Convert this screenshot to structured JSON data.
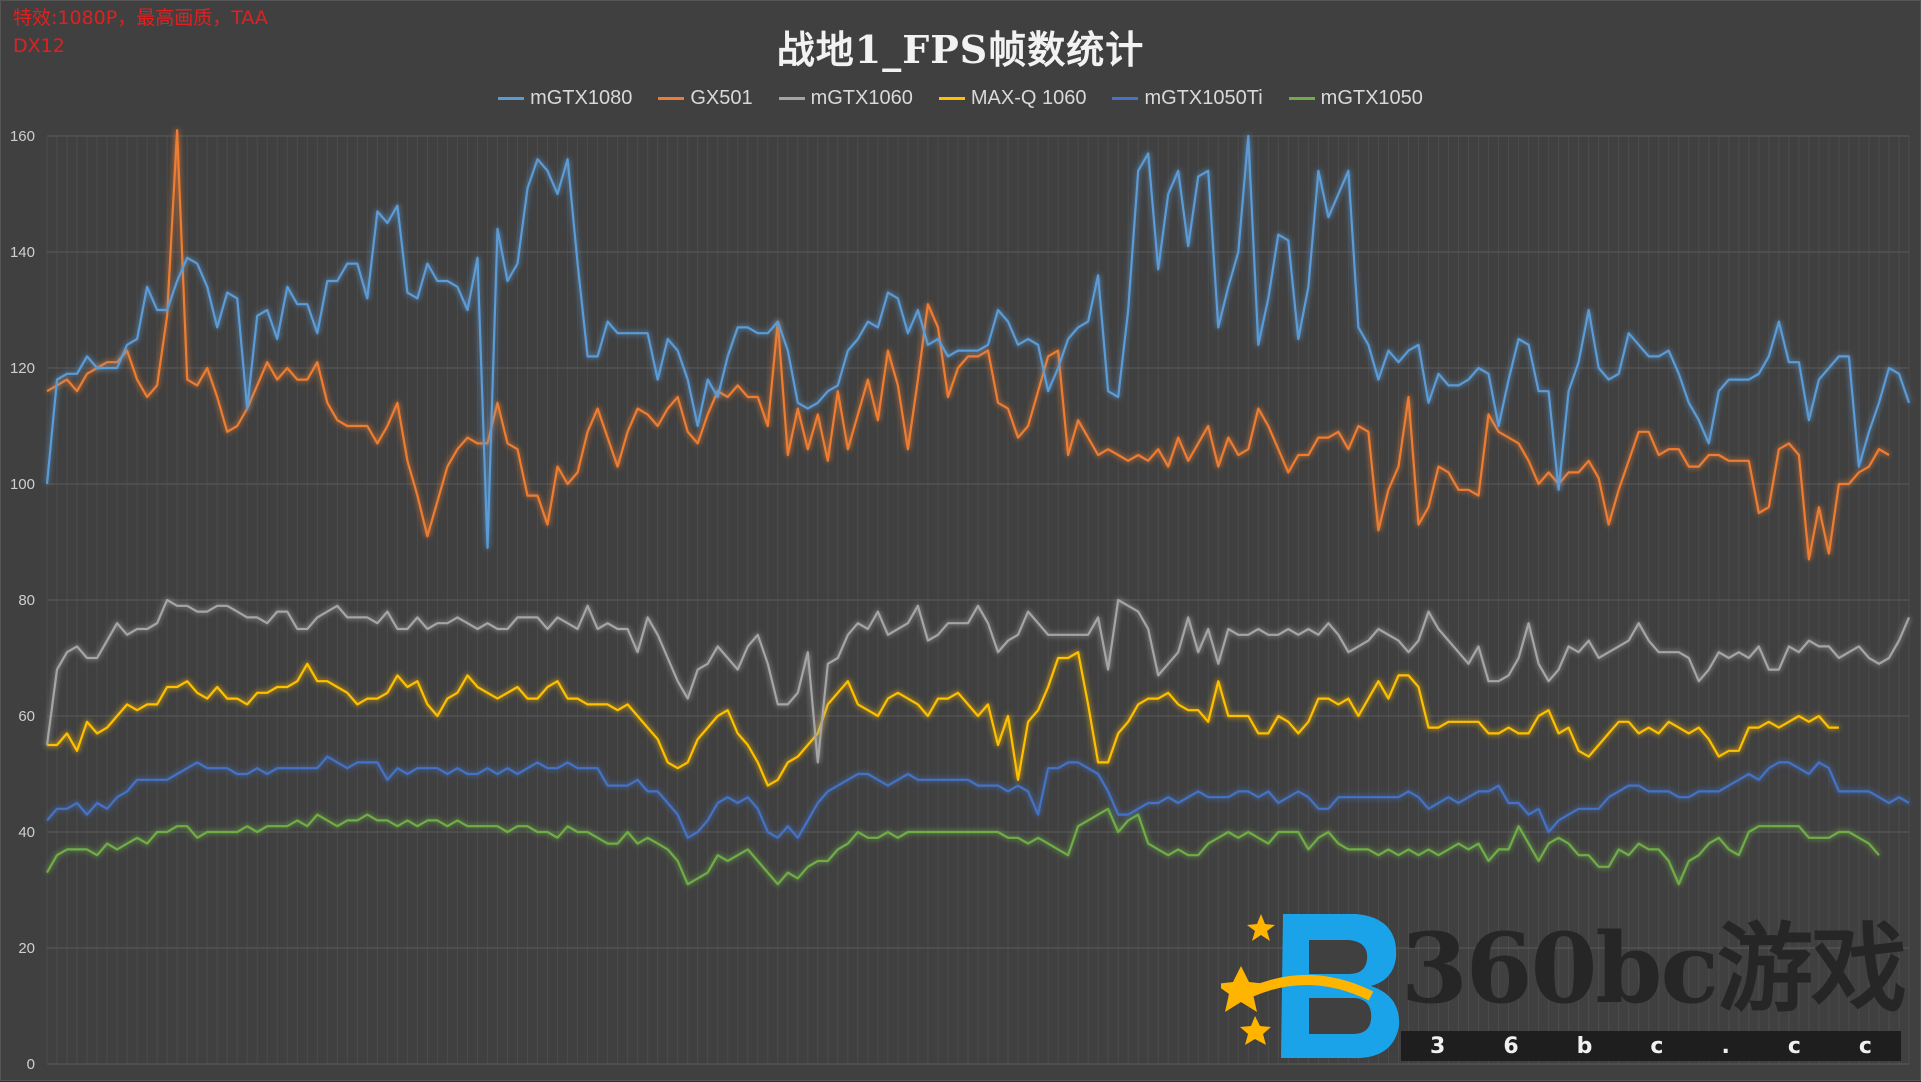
{
  "notes": {
    "line1": "特效:1080P，最高画质，TAA",
    "line2": "DX12"
  },
  "watermark": {
    "text": "360bc游戏",
    "url": "3 6 b c . c c"
  },
  "chart_data": {
    "type": "line",
    "title": "战地1_FPS帧数统计",
    "xlabel": "",
    "ylabel": "",
    "ylim": [
      0,
      160
    ],
    "yticks": [
      0,
      20,
      40,
      60,
      80,
      100,
      120,
      140,
      160
    ],
    "grid": true,
    "legend_position": "top",
    "series": [
      {
        "name": "mGTX1080",
        "color": "#5b9bd5",
        "values": [
          100,
          118,
          119,
          119,
          122,
          120,
          120,
          120,
          124,
          125,
          134,
          130,
          130,
          135,
          139,
          138,
          134,
          127,
          133,
          132,
          113,
          129,
          130,
          125,
          134,
          131,
          131,
          126,
          135,
          135,
          138,
          138,
          132,
          147,
          145,
          148,
          133,
          132,
          138,
          135,
          135,
          134,
          130,
          139,
          89,
          144,
          135,
          138,
          151,
          156,
          154,
          150,
          156,
          138,
          122,
          122,
          128,
          126,
          126,
          126,
          126,
          118,
          125,
          123,
          118,
          110,
          118,
          115,
          122,
          127,
          127,
          126,
          126,
          128,
          123,
          114,
          113,
          114,
          116,
          117,
          123,
          125,
          128,
          127,
          133,
          132,
          126,
          130,
          124,
          125,
          122,
          123,
          123,
          123,
          124,
          130,
          128,
          124,
          125,
          124,
          116,
          120,
          125,
          127,
          128,
          136,
          116,
          115,
          130,
          154,
          157,
          137,
          150,
          154,
          141,
          153,
          154,
          127,
          134,
          140,
          160,
          124,
          132,
          143,
          142,
          125,
          134,
          154,
          146,
          150,
          154,
          127,
          124,
          118,
          123,
          121,
          123,
          124,
          114,
          119,
          117,
          117,
          118,
          120,
          119,
          110,
          118,
          125,
          124,
          116,
          116,
          99,
          116,
          121,
          130,
          120,
          118,
          119,
          126,
          124,
          122,
          122,
          123,
          119,
          114,
          111,
          107,
          116,
          118,
          118,
          118,
          119,
          122,
          128,
          121,
          121,
          111,
          118,
          120,
          122,
          122,
          103,
          109,
          114,
          120,
          119,
          114
        ]
      },
      {
        "name": "GX501",
        "color": "#ed7d31",
        "values": [
          116,
          117,
          118,
          116,
          119,
          120,
          121,
          121,
          123,
          118,
          115,
          117,
          129,
          161,
          118,
          117,
          120,
          115,
          109,
          110,
          113,
          117,
          121,
          118,
          120,
          118,
          118,
          121,
          114,
          111,
          110,
          110,
          110,
          107,
          110,
          114,
          104,
          98,
          91,
          97,
          103,
          106,
          108,
          107,
          107,
          114,
          107,
          106,
          98,
          98,
          93,
          103,
          100,
          102,
          109,
          113,
          108,
          103,
          109,
          113,
          112,
          110,
          113,
          115,
          109,
          107,
          112,
          116,
          115,
          117,
          115,
          115,
          110,
          128,
          105,
          113,
          106,
          112,
          104,
          116,
          106,
          112,
          118,
          111,
          123,
          117,
          106,
          118,
          131,
          127,
          115,
          120,
          122,
          122,
          123,
          114,
          113,
          108,
          110,
          116,
          122,
          123,
          105,
          111,
          108,
          105,
          106,
          105,
          104,
          105,
          104,
          106,
          103,
          108,
          104,
          107,
          110,
          103,
          108,
          105,
          106,
          113,
          110,
          106,
          102,
          105,
          105,
          108,
          108,
          109,
          106,
          110,
          109,
          92,
          99,
          103,
          115,
          93,
          96,
          103,
          102,
          99,
          99,
          98,
          112,
          109,
          108,
          107,
          104,
          100,
          102,
          100,
          102,
          102,
          104,
          101,
          93,
          99,
          104,
          109,
          109,
          105,
          106,
          106,
          103,
          103,
          105,
          105,
          104,
          104,
          104,
          95,
          96,
          106,
          107,
          105,
          87,
          96,
          88,
          100,
          100,
          102,
          103,
          106,
          105
        ]
      },
      {
        "name": "mGTX1060",
        "color": "#a5a5a5",
        "values": [
          55,
          68,
          71,
          72,
          70,
          70,
          73,
          76,
          74,
          75,
          75,
          76,
          80,
          79,
          79,
          78,
          78,
          79,
          79,
          78,
          77,
          77,
          76,
          78,
          78,
          75,
          75,
          77,
          78,
          79,
          77,
          77,
          77,
          76,
          78,
          75,
          75,
          77,
          75,
          76,
          76,
          77,
          76,
          75,
          76,
          75,
          75,
          77,
          77,
          77,
          75,
          77,
          76,
          75,
          79,
          75,
          76,
          75,
          75,
          71,
          77,
          74,
          70,
          66,
          63,
          68,
          69,
          72,
          70,
          68,
          72,
          74,
          69,
          62,
          62,
          64,
          71,
          52,
          69,
          70,
          74,
          76,
          75,
          78,
          74,
          75,
          76,
          79,
          73,
          74,
          76,
          76,
          76,
          79,
          76,
          71,
          73,
          74,
          78,
          76,
          74,
          74,
          74,
          74,
          74,
          77,
          68,
          80,
          79,
          78,
          75,
          67,
          69,
          71,
          77,
          71,
          75,
          69,
          75,
          74,
          74,
          75,
          74,
          74,
          75,
          74,
          75,
          74,
          76,
          74,
          71,
          72,
          73,
          75,
          74,
          73,
          71,
          73,
          78,
          75,
          73,
          71,
          69,
          72,
          66,
          66,
          67,
          70,
          76,
          69,
          66,
          68,
          72,
          71,
          73,
          70,
          71,
          72,
          73,
          76,
          73,
          71,
          71,
          71,
          70,
          66,
          68,
          71,
          70,
          71,
          70,
          72,
          68,
          68,
          72,
          71,
          73,
          72,
          72,
          70,
          71,
          72,
          70,
          69,
          70,
          73,
          77
        ]
      },
      {
        "name": "MAX-Q 1060",
        "color": "#ffc000",
        "values": [
          55,
          55,
          57,
          54,
          59,
          57,
          58,
          60,
          62,
          61,
          62,
          62,
          65,
          65,
          66,
          64,
          63,
          65,
          63,
          63,
          62,
          64,
          64,
          65,
          65,
          66,
          69,
          66,
          66,
          65,
          64,
          62,
          63,
          63,
          64,
          67,
          65,
          66,
          62,
          60,
          63,
          64,
          67,
          65,
          64,
          63,
          64,
          65,
          63,
          63,
          65,
          66,
          63,
          63,
          62,
          62,
          62,
          61,
          62,
          60,
          58,
          56,
          52,
          51,
          52,
          56,
          58,
          60,
          61,
          57,
          55,
          52,
          48,
          49,
          52,
          53,
          55,
          57,
          62,
          64,
          66,
          62,
          61,
          60,
          63,
          64,
          63,
          62,
          60,
          63,
          63,
          64,
          62,
          60,
          62,
          55,
          60,
          49,
          59,
          61,
          65,
          70,
          70,
          71,
          62,
          52,
          52,
          57,
          59,
          62,
          63,
          63,
          64,
          62,
          61,
          61,
          59,
          66,
          60,
          60,
          60,
          57,
          57,
          60,
          59,
          57,
          59,
          63,
          63,
          62,
          63,
          60,
          63,
          66,
          63,
          67,
          67,
          65,
          58,
          58,
          59,
          59,
          59,
          59,
          57,
          57,
          58,
          57,
          57,
          60,
          61,
          57,
          58,
          54,
          53,
          55,
          57,
          59,
          59,
          57,
          58,
          57,
          59,
          58,
          57,
          58,
          56,
          53,
          54,
          54,
          58,
          58,
          59,
          58,
          59,
          60,
          59,
          60,
          58,
          58
        ]
      },
      {
        "name": "mGTX1050Ti",
        "color": "#4472c4",
        "values": [
          42,
          44,
          44,
          45,
          43,
          45,
          44,
          46,
          47,
          49,
          49,
          49,
          49,
          50,
          51,
          52,
          51,
          51,
          51,
          50,
          50,
          51,
          50,
          51,
          51,
          51,
          51,
          51,
          53,
          52,
          51,
          52,
          52,
          52,
          49,
          51,
          50,
          51,
          51,
          51,
          50,
          51,
          50,
          50,
          51,
          50,
          51,
          50,
          51,
          52,
          51,
          51,
          52,
          51,
          51,
          51,
          48,
          48,
          48,
          49,
          47,
          47,
          45,
          43,
          39,
          40,
          42,
          45,
          46,
          45,
          46,
          44,
          40,
          39,
          41,
          39,
          42,
          45,
          47,
          48,
          49,
          50,
          50,
          49,
          48,
          49,
          50,
          49,
          49,
          49,
          49,
          49,
          49,
          48,
          48,
          48,
          47,
          48,
          47,
          43,
          51,
          51,
          52,
          52,
          51,
          50,
          47,
          43,
          43,
          44,
          45,
          45,
          46,
          45,
          46,
          47,
          46,
          46,
          46,
          47,
          47,
          46,
          47,
          45,
          46,
          47,
          46,
          44,
          44,
          46,
          46,
          46,
          46,
          46,
          46,
          46,
          47,
          46,
          44,
          45,
          46,
          45,
          46,
          47,
          47,
          48,
          45,
          45,
          43,
          44,
          40,
          42,
          43,
          44,
          44,
          44,
          46,
          47,
          48,
          48,
          47,
          47,
          47,
          46,
          46,
          47,
          47,
          47,
          48,
          49,
          50,
          49,
          51,
          52,
          52,
          51,
          50,
          52,
          51,
          47,
          47,
          47,
          47,
          46,
          45,
          46,
          45
        ]
      },
      {
        "name": "mGTX1050",
        "color": "#70ad47",
        "values": [
          33,
          36,
          37,
          37,
          37,
          36,
          38,
          37,
          38,
          39,
          38,
          40,
          40,
          41,
          41,
          39,
          40,
          40,
          40,
          40,
          41,
          40,
          41,
          41,
          41,
          42,
          41,
          43,
          42,
          41,
          42,
          42,
          43,
          42,
          42,
          41,
          42,
          41,
          42,
          42,
          41,
          42,
          41,
          41,
          41,
          41,
          40,
          41,
          41,
          40,
          40,
          39,
          41,
          40,
          40,
          39,
          38,
          38,
          40,
          38,
          39,
          38,
          37,
          35,
          31,
          32,
          33,
          36,
          35,
          36,
          37,
          35,
          33,
          31,
          33,
          32,
          34,
          35,
          35,
          37,
          38,
          40,
          39,
          39,
          40,
          39,
          40,
          40,
          40,
          40,
          40,
          40,
          40,
          40,
          40,
          40,
          39,
          39,
          38,
          39,
          38,
          37,
          36,
          41,
          42,
          43,
          44,
          40,
          42,
          43,
          38,
          37,
          36,
          37,
          36,
          36,
          38,
          39,
          40,
          39,
          40,
          39,
          38,
          40,
          40,
          40,
          37,
          39,
          40,
          38,
          37,
          37,
          37,
          36,
          37,
          36,
          37,
          36,
          37,
          36,
          37,
          38,
          37,
          38,
          35,
          37,
          37,
          41,
          38,
          35,
          38,
          39,
          38,
          36,
          36,
          34,
          34,
          37,
          36,
          38,
          37,
          37,
          35,
          31,
          35,
          36,
          38,
          39,
          37,
          36,
          40,
          41,
          41,
          41,
          41,
          41,
          39,
          39,
          39,
          40,
          40,
          39,
          38,
          36
        ]
      }
    ]
  }
}
